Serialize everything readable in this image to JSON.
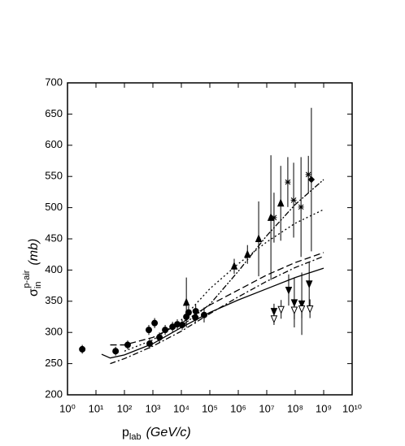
{
  "chart_data": {
    "type": "scatter",
    "x_label": {
      "symbol": "p",
      "sub": "lab",
      "unit": "(GeV/c)"
    },
    "y_label": {
      "symbol": "σ",
      "sub": "in",
      "sup": "p-air",
      "unit": "(mb)"
    },
    "xscale": "log",
    "xlim": [
      1,
      10000000000
    ],
    "xticks": [
      {
        "value": 1,
        "label": "10⁰"
      },
      {
        "value": 10,
        "label": "10¹"
      },
      {
        "value": 100,
        "label": "10²"
      },
      {
        "value": 1000,
        "label": "10³"
      },
      {
        "value": 10000,
        "label": "10⁴"
      },
      {
        "value": 100000,
        "label": "10⁵"
      },
      {
        "value": 1000000,
        "label": "10⁶"
      },
      {
        "value": 10000000,
        "label": "10⁷"
      },
      {
        "value": 100000000,
        "label": "10⁸"
      },
      {
        "value": 1000000000,
        "label": "10⁹"
      },
      {
        "value": 10000000000,
        "label": "10¹⁰"
      }
    ],
    "ylim": [
      200,
      700
    ],
    "yticks": [
      200,
      250,
      300,
      350,
      400,
      450,
      500,
      550,
      600,
      650,
      700
    ],
    "series": [
      {
        "marker": "circle",
        "color": "#000000",
        "x": [
          3.3,
          49,
          130,
          720,
          1150,
          770,
          1700,
          2700,
          4900,
          7200,
          10700,
          15000,
          18000,
          31000,
          32000,
          63000
        ],
        "values": [
          273,
          270,
          280,
          304,
          315,
          282,
          292,
          304,
          309,
          313,
          312,
          325,
          332,
          324,
          334,
          328
        ],
        "errors": [
          7,
          7,
          7,
          8,
          8,
          8,
          8,
          8,
          8,
          8,
          8,
          10,
          10,
          10,
          10,
          12
        ]
      },
      {
        "marker": "triangle-up",
        "color": "#000000",
        "x": [
          15000,
          720000,
          2100000,
          5200000,
          14000000,
          31000000
        ],
        "values": [
          348,
          406,
          425,
          450,
          484,
          507
        ],
        "errors": [
          40,
          12,
          15,
          60,
          100,
          60
        ]
      },
      {
        "marker": "asterisk",
        "color": "#000000",
        "x": [
          18000000,
          55000000,
          88000000,
          160000000,
          290000000
        ],
        "values": [
          484,
          541,
          512,
          501,
          553
        ],
        "errors": [
          40,
          40,
          60,
          80,
          30
        ]
      },
      {
        "marker": "diamond",
        "color": "#000000",
        "x": [
          370000000
        ],
        "values": [
          545
        ],
        "errors": [
          115
        ]
      },
      {
        "marker": "triangle-down",
        "color": "#000000",
        "x": [
          18000000,
          59000000,
          93000000,
          170000000,
          310000000
        ],
        "values": [
          334,
          368,
          348,
          346,
          378
        ],
        "errors": [
          12,
          25,
          40,
          50,
          35
        ]
      },
      {
        "marker": "triangle-down-open",
        "color": "#000000",
        "x": [
          18000000,
          32000000,
          93000000,
          170000000,
          330000000
        ],
        "values": [
          322,
          337,
          336,
          338,
          338
        ],
        "errors": [
          10,
          15,
          15,
          15,
          15
        ]
      }
    ],
    "curves": [
      {
        "dash": "",
        "color": "#000000",
        "x": [
          15.8,
          31.6,
          100,
          1000,
          10000,
          100000,
          1000000,
          10000000,
          100000000,
          1000000000
        ],
        "values": [
          265,
          259,
          264,
          282,
          308,
          332,
          352,
          370,
          388,
          403
        ]
      },
      {
        "dash": "8 4",
        "color": "#000000",
        "x": [
          31.6,
          100,
          1000,
          10000,
          100000,
          1000000,
          10000000,
          100000000,
          1000000000
        ],
        "values": [
          280,
          280,
          292,
          315,
          344,
          368,
          392,
          412,
          428
        ]
      },
      {
        "dash": "7 3 2 3",
        "color": "#000000",
        "x": [
          31.6,
          100,
          1000,
          10000,
          100000,
          1000000,
          10000000,
          100000000,
          1000000000
        ],
        "values": [
          250,
          258,
          278,
          302,
          330,
          357,
          382,
          404,
          422
        ]
      },
      {
        "dash": "2 3",
        "color": "#000000",
        "x": [
          100,
          1000,
          10000,
          100000,
          1000000,
          10000000,
          100000000,
          1000000000
        ],
        "values": [
          270,
          288,
          320,
          370,
          410,
          445,
          475,
          497
        ]
      },
      {
        "dash": "7 2 2 2 2 2",
        "color": "#000000",
        "x": [
          10000,
          100000,
          1000000,
          10000000,
          100000000,
          1000000000
        ],
        "values": [
          310,
          345,
          398,
          455,
          505,
          545
        ]
      }
    ]
  }
}
